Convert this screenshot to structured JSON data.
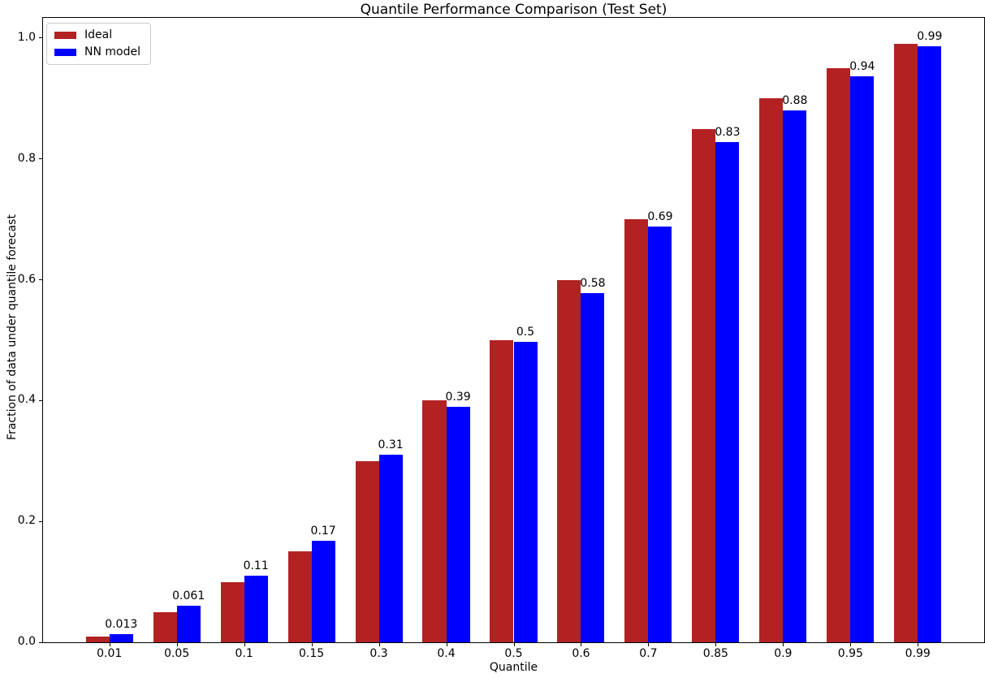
{
  "chart_data": {
    "type": "bar",
    "title": "Quantile Performance Comparison (Test Set)",
    "xlabel": "Quantile",
    "ylabel": "Fraction of data under quantile forecast",
    "categories": [
      "0.01",
      "0.05",
      "0.1",
      "0.15",
      "0.3",
      "0.4",
      "0.5",
      "0.6",
      "0.7",
      "0.85",
      "0.9",
      "0.95",
      "0.99"
    ],
    "series": [
      {
        "name": "Ideal",
        "color": "#b22222",
        "values": [
          0.01,
          0.05,
          0.1,
          0.15,
          0.3,
          0.4,
          0.5,
          0.6,
          0.7,
          0.85,
          0.9,
          0.95,
          0.99
        ]
      },
      {
        "name": "NN model",
        "color": "#0000ff",
        "values": [
          0.013,
          0.061,
          0.11,
          0.168,
          0.31,
          0.39,
          0.497,
          0.578,
          0.688,
          0.828,
          0.88,
          0.937,
          0.987
        ],
        "bar_labels": [
          "0.013",
          "0.061",
          "0.11",
          "0.17",
          "0.31",
          "0.39",
          "0.5",
          "0.58",
          "0.69",
          "0.83",
          "0.88",
          "0.94",
          "0.99"
        ]
      }
    ],
    "yticks": [
      "0.0",
      "0.2",
      "0.4",
      "0.6",
      "0.8",
      "1.0"
    ],
    "ylim": [
      0,
      1.0335
    ],
    "xlim": [
      -0.985,
      12.985
    ],
    "bar_width": 0.35,
    "legend_position": "upper left",
    "grid": false,
    "label_color": "#000000",
    "spine_color": "#000000"
  }
}
